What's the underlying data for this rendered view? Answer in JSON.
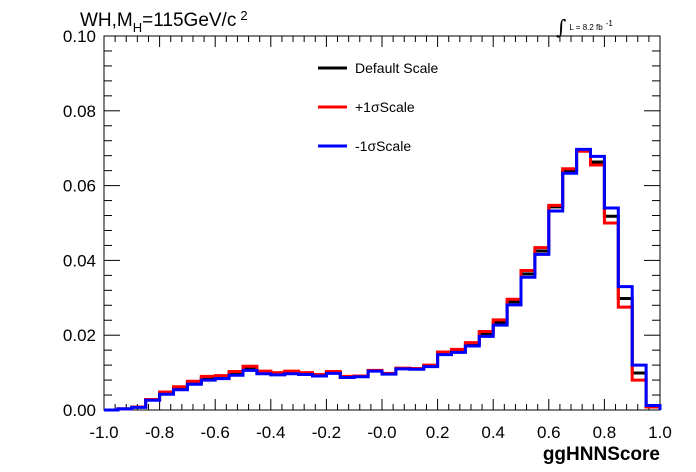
{
  "chart_data": {
    "type": "line",
    "title": {
      "prefix": "WH,M",
      "sub": "H",
      "suffix": "=115GeV/c",
      "sup": "2"
    },
    "lumi": {
      "integral_symbol": "∫",
      "text": "L = 8.2 fb",
      "sup": "-1"
    },
    "xlabel": "ggHNNScore",
    "ylabel": "",
    "xlim": [
      -1.0,
      1.0
    ],
    "ylim": [
      0.0,
      0.1
    ],
    "x_tick_labels": [
      "-1.0",
      "-0.8",
      "-0.6",
      "-0.4",
      "-0.2",
      "-0.0",
      "0.2",
      "0.4",
      "0.6",
      "0.8",
      "1.0"
    ],
    "y_tick_labels": [
      "0.00",
      "0.02",
      "0.04",
      "0.06",
      "0.08",
      "0.10"
    ],
    "bin_edges": [
      -1.0,
      -0.95,
      -0.9,
      -0.85,
      -0.8,
      -0.75,
      -0.7,
      -0.65,
      -0.6,
      -0.55,
      -0.5,
      -0.45,
      -0.4,
      -0.35,
      -0.3,
      -0.25,
      -0.2,
      -0.15,
      -0.1,
      -0.05,
      0.0,
      0.05,
      0.1,
      0.15,
      0.2,
      0.25,
      0.3,
      0.35,
      0.4,
      0.45,
      0.5,
      0.55,
      0.6,
      0.65,
      0.7,
      0.75,
      0.8,
      0.85,
      0.9,
      0.95,
      1.0
    ],
    "legend_position": "top-center",
    "series": [
      {
        "name": "Default Scale",
        "color": "#000000",
        "values": [
          0.0,
          0.0003,
          0.0008,
          0.0028,
          0.0045,
          0.0058,
          0.0072,
          0.0084,
          0.0089,
          0.0098,
          0.0111,
          0.0101,
          0.0097,
          0.0101,
          0.0098,
          0.0093,
          0.0101,
          0.0089,
          0.009,
          0.0105,
          0.0097,
          0.0111,
          0.011,
          0.0118,
          0.0152,
          0.0158,
          0.0176,
          0.0203,
          0.0234,
          0.0289,
          0.0364,
          0.0425,
          0.0543,
          0.0639,
          0.0695,
          0.0663,
          0.0518,
          0.0298,
          0.0099,
          0.001
        ]
      },
      {
        "name": "+1σScale",
        "color": "#ff0000",
        "values": [
          0.0,
          0.0003,
          0.0008,
          0.0028,
          0.0048,
          0.0062,
          0.0077,
          0.009,
          0.0092,
          0.0103,
          0.0117,
          0.0104,
          0.01,
          0.0104,
          0.01,
          0.0095,
          0.0103,
          0.009,
          0.0091,
          0.0106,
          0.0098,
          0.0112,
          0.0111,
          0.012,
          0.0155,
          0.0162,
          0.018,
          0.021,
          0.0241,
          0.0296,
          0.0373,
          0.0434,
          0.0547,
          0.0645,
          0.0692,
          0.0655,
          0.05,
          0.0275,
          0.008,
          0.0008
        ]
      },
      {
        "name": "-1σScale",
        "color": "#0000ff",
        "values": [
          0.0,
          0.0003,
          0.0007,
          0.0026,
          0.0042,
          0.0054,
          0.0069,
          0.008,
          0.0084,
          0.0093,
          0.0106,
          0.0097,
          0.0094,
          0.0097,
          0.0095,
          0.0091,
          0.0098,
          0.0087,
          0.0089,
          0.0104,
          0.0096,
          0.011,
          0.0109,
          0.0116,
          0.0148,
          0.0154,
          0.0171,
          0.0197,
          0.0227,
          0.0281,
          0.0355,
          0.0416,
          0.0532,
          0.0633,
          0.0697,
          0.0678,
          0.054,
          0.033,
          0.012,
          0.0012
        ]
      }
    ]
  }
}
